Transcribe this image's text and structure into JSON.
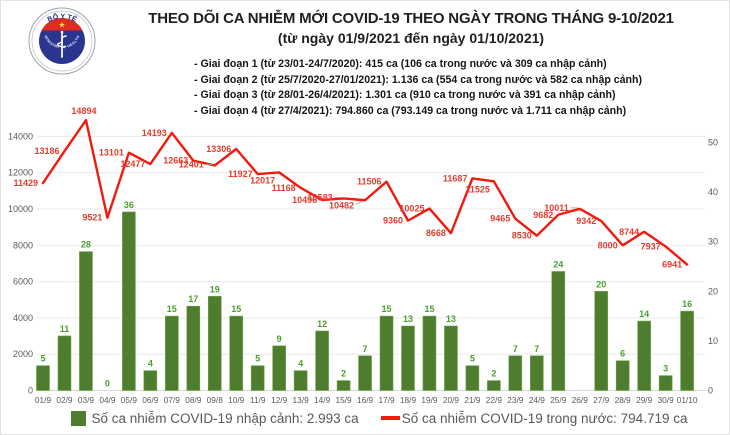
{
  "header": {
    "logo": {
      "top_text": "BỘ Y TẾ",
      "bottom_text": "MINISTRY OF HEALTH"
    },
    "title": "THEO DÕI CA NHIỄM MỚI COVID-19 THEO NGÀY TRONG THÁNG 9-10/2021",
    "subtitle": "(từ ngày 01/9/2021 đến ngày 01/10/2021)",
    "phases": [
      "- Giai đoạn 1 (từ 23/01-24/7/2020): 415 ca (106 ca trong nước và 309 ca nhập cảnh)",
      "- Giai đoạn 2 (từ 25/7/2020-27/01/2021): 1.136 ca (554 ca trong nước và 582 ca nhập cảnh)",
      "- Giai đoạn 3 (từ 28/01-26/4/2021): 1.301 ca (910 ca trong nước và 391 ca nhập cảnh)",
      "- Giai đoạn 4 (từ 27/4/2021): 794.860 ca (793.149 ca trong nước và 1.711 ca nhập cảnh)"
    ]
  },
  "chart_data": {
    "type": "combo",
    "categories": [
      "01/9",
      "02/9",
      "03/9",
      "04/9",
      "05/9",
      "06/9",
      "07/9",
      "08/9",
      "09/8",
      "10/9",
      "11/9",
      "12/9",
      "13/9",
      "14/9",
      "15/9",
      "16/9",
      "17/9",
      "18/9",
      "19/9",
      "20/9",
      "21/9",
      "22/9",
      "23/9",
      "24/9",
      "25/9",
      "26/9",
      "27/9",
      "28/9",
      "29/9",
      "30/9",
      "01/10"
    ],
    "series": [
      {
        "name": "Số ca nhiễm COVID-19 nhập cảnh",
        "type": "bar",
        "axis": "right",
        "color": "#4f7d2f",
        "border_color": "#6da845",
        "label_color": "#4aa02c",
        "values": [
          5,
          11,
          28,
          0,
          36,
          4,
          15,
          17,
          19,
          15,
          5,
          9,
          4,
          12,
          2,
          7,
          15,
          13,
          15,
          13,
          5,
          2,
          7,
          7,
          24,
          null,
          20,
          6,
          14,
          3,
          16
        ]
      },
      {
        "name": "Số ca nhiễm COVID-19 trong nước",
        "type": "line",
        "axis": "left",
        "color": "#f2190d",
        "label_color": "#e23d2e",
        "values": [
          11429,
          13186,
          14894,
          9521,
          13101,
          12477,
          14193,
          12663,
          12401,
          13306,
          11927,
          12017,
          11168,
          10496,
          10583,
          10482,
          11506,
          9360,
          10025,
          8668,
          11687,
          11525,
          9465,
          8530,
          9682,
          10011,
          9342,
          8000,
          8744,
          7937,
          6941
        ],
        "label_sides": [
          "l",
          "l",
          "a",
          "l",
          "l",
          "l",
          "l",
          "l",
          "l-lead",
          "l",
          "l",
          "lb",
          "l",
          "l",
          "l-lead",
          "lb-lead",
          "l",
          "l",
          "l",
          "l",
          "l",
          "lb",
          "l",
          "l",
          "l",
          "l-lead",
          "l",
          "l",
          "l",
          "l",
          "l"
        ]
      }
    ],
    "left_axis": {
      "ticks": [
        0,
        2000,
        4000,
        6000,
        8000,
        10000,
        12000,
        14000
      ]
    },
    "right_axis": {
      "ticks": [
        0,
        10,
        20,
        30,
        40,
        50
      ]
    },
    "grid": true,
    "grid_color": "#e9e9e9",
    "axis_line_color": "#d6d6d6",
    "tick_color": "#595959",
    "legend_position": "bottom"
  },
  "legend": {
    "items": [
      {
        "swatch": "square",
        "color": "#4f7d2f",
        "label": "Số ca nhiễm COVID-19 nhập cảnh: 2.993 ca"
      },
      {
        "swatch": "line",
        "color": "#f2190d",
        "label": "Số ca nhiễm COVID-19 trong nước: 794.719 ca"
      }
    ]
  }
}
